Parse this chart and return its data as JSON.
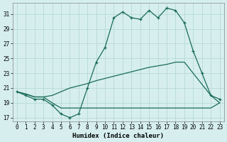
{
  "xlabel": "Humidex (Indice chaleur)",
  "bg_color": "#d6eeee",
  "grid_color": "#b8d8d8",
  "line_color": "#1a6b5a",
  "xlim": [
    -0.5,
    23.5
  ],
  "ylim": [
    16.5,
    32.5
  ],
  "yticks": [
    17,
    19,
    21,
    23,
    25,
    27,
    29,
    31
  ],
  "xticks": [
    0,
    1,
    2,
    3,
    4,
    5,
    6,
    7,
    8,
    9,
    10,
    11,
    12,
    13,
    14,
    15,
    16,
    17,
    18,
    19,
    20,
    21,
    22,
    23
  ],
  "line1_x": [
    0,
    1,
    2,
    3,
    4,
    5,
    6,
    7,
    8,
    9,
    10,
    11,
    12,
    13,
    14,
    15,
    16,
    17,
    18,
    19,
    20,
    21,
    22,
    23
  ],
  "line1_y": [
    20.5,
    20.0,
    19.5,
    19.5,
    18.7,
    17.5,
    17.0,
    17.5,
    21.0,
    24.5,
    26.5,
    30.5,
    31.3,
    30.5,
    30.3,
    31.5,
    30.5,
    31.8,
    31.5,
    29.8,
    26.0,
    23.0,
    20.0,
    19.5
  ],
  "line2_x": [
    0,
    1,
    2,
    3,
    4,
    5,
    6,
    7,
    8,
    9,
    10,
    11,
    12,
    13,
    14,
    15,
    16,
    17,
    18,
    19,
    20,
    21,
    22,
    23
  ],
  "line2_y": [
    20.5,
    20.2,
    19.8,
    19.8,
    20.0,
    20.5,
    21.0,
    21.3,
    21.6,
    22.0,
    22.3,
    22.6,
    22.9,
    23.2,
    23.5,
    23.8,
    24.0,
    24.2,
    24.5,
    24.5,
    23.0,
    21.5,
    20.0,
    19.0
  ],
  "line3_x": [
    0,
    1,
    2,
    3,
    4,
    5,
    6,
    7,
    8,
    9,
    10,
    11,
    12,
    13,
    14,
    15,
    16,
    17,
    18,
    19,
    20,
    21,
    22,
    23
  ],
  "line3_y": [
    20.5,
    20.2,
    19.8,
    19.8,
    19.0,
    18.3,
    18.3,
    18.3,
    18.3,
    18.3,
    18.3,
    18.3,
    18.3,
    18.3,
    18.3,
    18.3,
    18.3,
    18.3,
    18.3,
    18.3,
    18.3,
    18.3,
    18.3,
    19.0
  ],
  "xlabel_fontsize": 6.5,
  "tick_fontsize": 5.5
}
